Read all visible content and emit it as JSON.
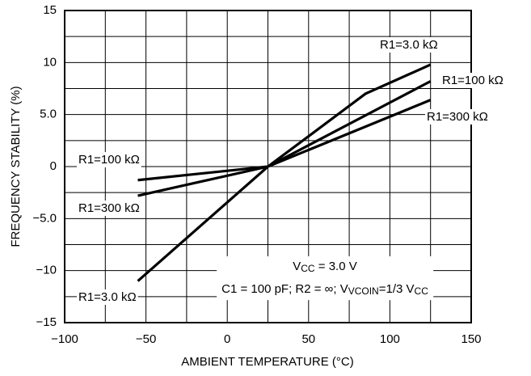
{
  "chart_data": {
    "type": "line",
    "xlabel": "AMBIENT TEMPERATURE (°C)",
    "ylabel": "FREQUENCY STABILITY (%)",
    "xlim": [
      -100,
      150
    ],
    "ylim": [
      -15,
      15
    ],
    "xticks": [
      {
        "value": -100,
        "label": "−100"
      },
      {
        "value": -50,
        "label": "−50"
      },
      0,
      50,
      100,
      150
    ],
    "yticks": [
      {
        "value": -15,
        "label": "−15"
      },
      {
        "value": -10,
        "label": "−10"
      },
      {
        "value": -5,
        "label": "−5.0"
      },
      0,
      {
        "value": 5,
        "label": "5.0"
      },
      10,
      15
    ],
    "xgrid": [
      -75,
      -25,
      25,
      75,
      125
    ],
    "ygrid": [
      -12.5,
      -7.5,
      -2.5,
      2.5,
      7.5,
      12.5
    ],
    "grid": true,
    "series": [
      {
        "name": "R1=3.0 kΩ",
        "color": "#000000",
        "x": [
          -55,
          25,
          85,
          125
        ],
        "values": [
          -11,
          0,
          7,
          9.8
        ]
      },
      {
        "name": "R1=100 kΩ",
        "color": "#000000",
        "x": [
          -55,
          25,
          125
        ],
        "values": [
          -1.3,
          0,
          8.2
        ]
      },
      {
        "name": "R1=300 kΩ",
        "color": "#000000",
        "x": [
          -55,
          25,
          125
        ],
        "values": [
          -2.8,
          0,
          6.4
        ]
      }
    ],
    "annotations": [
      {
        "parts": [
          {
            "text": "V"
          },
          {
            "text": "CC",
            "sub": true
          },
          {
            "text": " = 3.0 V"
          }
        ]
      },
      {
        "parts": [
          {
            "text": "C1 = 100 pF; R2 = ∞; V"
          },
          {
            "text": "VCOIN",
            "sub": true
          },
          {
            "text": "=1/3 V"
          },
          {
            "text": "CC",
            "sub": true
          }
        ]
      }
    ]
  }
}
